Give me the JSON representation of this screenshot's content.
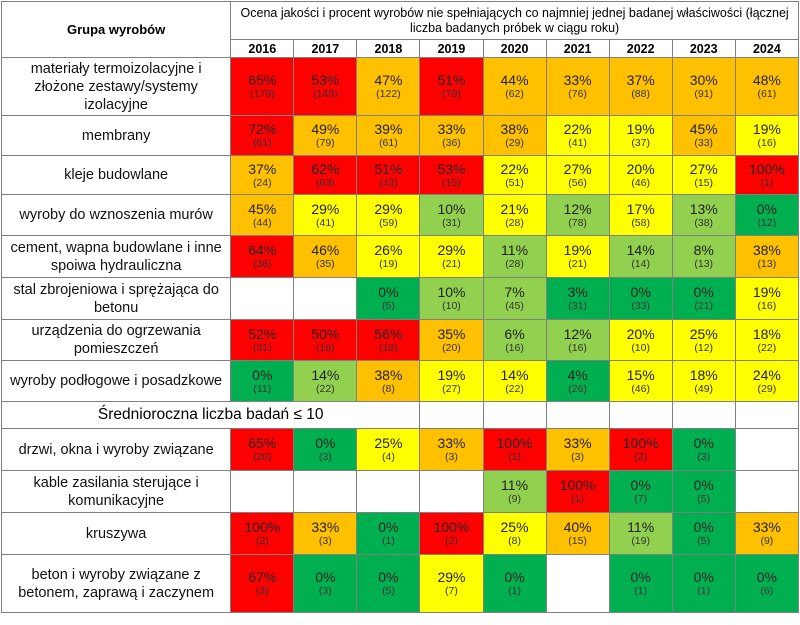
{
  "header": {
    "group_label": "Grupa wyrobów",
    "description": "Ocena jakości i procent wyrobów nie spełniających co najmniej jednej badanej właściwości (łącznej liczba badanych próbek w ciągu roku)",
    "years": [
      "2016",
      "2017",
      "2018",
      "2019",
      "2020",
      "2021",
      "2022",
      "2023",
      "2024"
    ]
  },
  "colors": {
    "red": "#ff0000",
    "orange": "#ffc000",
    "yellow": "#ffff00",
    "lgreen": "#92d050",
    "green": "#00b050",
    "empty": "#ffffff"
  },
  "section_label": "Średnioroczna liczba badań ≤ 10",
  "rows_main": [
    {
      "label": "materiały termoizolacyjne i złożone zestawy/systemy izolacyjne",
      "h": 58,
      "cells": [
        {
          "p": "65%",
          "n": "(179)",
          "c": "red"
        },
        {
          "p": "53%",
          "n": "(143)",
          "c": "red"
        },
        {
          "p": "47%",
          "n": "(122)",
          "c": "orange"
        },
        {
          "p": "51%",
          "n": "(79)",
          "c": "red"
        },
        {
          "p": "44%",
          "n": "(62)",
          "c": "orange"
        },
        {
          "p": "33%",
          "n": "(76)",
          "c": "orange"
        },
        {
          "p": "37%",
          "n": "(88)",
          "c": "orange"
        },
        {
          "p": "30%",
          "n": "(91)",
          "c": "orange"
        },
        {
          "p": "48%",
          "n": "(61)",
          "c": "orange"
        }
      ]
    },
    {
      "label": "membrany",
      "h": 40,
      "cells": [
        {
          "p": "72%",
          "n": "(61)",
          "c": "red"
        },
        {
          "p": "49%",
          "n": "(79)",
          "c": "orange"
        },
        {
          "p": "39%",
          "n": "(61)",
          "c": "orange"
        },
        {
          "p": "33%",
          "n": "(36)",
          "c": "orange"
        },
        {
          "p": "38%",
          "n": "(29)",
          "c": "orange"
        },
        {
          "p": "22%",
          "n": "(41)",
          "c": "yellow"
        },
        {
          "p": "19%",
          "n": "(37)",
          "c": "yellow"
        },
        {
          "p": "45%",
          "n": "(33)",
          "c": "orange"
        },
        {
          "p": "19%",
          "n": "(16)",
          "c": "yellow"
        }
      ]
    },
    {
      "label": "kleje budowlane",
      "h": 39,
      "cells": [
        {
          "p": "37%",
          "n": "(24)",
          "c": "orange"
        },
        {
          "p": "62%",
          "n": "(63)",
          "c": "red"
        },
        {
          "p": "51%",
          "n": "(43)",
          "c": "red"
        },
        {
          "p": "53%",
          "n": "(15)",
          "c": "red"
        },
        {
          "p": "22%",
          "n": "(51)",
          "c": "yellow"
        },
        {
          "p": "27%",
          "n": "(56)",
          "c": "yellow"
        },
        {
          "p": "20%",
          "n": "(46)",
          "c": "yellow"
        },
        {
          "p": "27%",
          "n": "(15)",
          "c": "yellow"
        },
        {
          "p": "100%",
          "n": "(1)",
          "c": "red"
        }
      ]
    },
    {
      "label": "wyroby do wznoszenia murów",
      "h": 41,
      "cells": [
        {
          "p": "45%",
          "n": "(44)",
          "c": "orange"
        },
        {
          "p": "29%",
          "n": "(41)",
          "c": "yellow"
        },
        {
          "p": "29%",
          "n": "(59)",
          "c": "yellow"
        },
        {
          "p": "10%",
          "n": "(31)",
          "c": "lgreen"
        },
        {
          "p": "21%",
          "n": "(28)",
          "c": "yellow"
        },
        {
          "p": "12%",
          "n": "(78)",
          "c": "lgreen"
        },
        {
          "p": "17%",
          "n": "(58)",
          "c": "yellow"
        },
        {
          "p": "13%",
          "n": "(38)",
          "c": "lgreen"
        },
        {
          "p": "0%",
          "n": "(12)",
          "c": "green"
        }
      ]
    },
    {
      "label": "cement, wapna budowlane i inne spoiwa hydrauliczna",
      "h": 42,
      "cells": [
        {
          "p": "64%",
          "n": "(36)",
          "c": "red"
        },
        {
          "p": "46%",
          "n": "(35)",
          "c": "orange"
        },
        {
          "p": "26%",
          "n": "(19)",
          "c": "yellow"
        },
        {
          "p": "29%",
          "n": "(21)",
          "c": "yellow"
        },
        {
          "p": "11%",
          "n": "(28)",
          "c": "lgreen"
        },
        {
          "p": "19%",
          "n": "(21)",
          "c": "yellow"
        },
        {
          "p": "14%",
          "n": "(14)",
          "c": "lgreen"
        },
        {
          "p": "8%",
          "n": "(13)",
          "c": "lgreen"
        },
        {
          "p": "38%",
          "n": "(13)",
          "c": "orange"
        }
      ]
    },
    {
      "label": "stal zbrojeniowa i sprężająca do betonu",
      "h": 42,
      "cells": [
        {
          "p": "",
          "n": "",
          "c": "empty"
        },
        {
          "p": "",
          "n": "",
          "c": "empty"
        },
        {
          "p": "0%",
          "n": "(5)",
          "c": "green"
        },
        {
          "p": "10%",
          "n": "(10)",
          "c": "lgreen"
        },
        {
          "p": "7%",
          "n": "(45)",
          "c": "lgreen"
        },
        {
          "p": "3%",
          "n": "(31)",
          "c": "green"
        },
        {
          "p": "0%",
          "n": "(33)",
          "c": "green"
        },
        {
          "p": "0%",
          "n": "(21)",
          "c": "green"
        },
        {
          "p": "19%",
          "n": "(16)",
          "c": "yellow"
        }
      ]
    },
    {
      "label": "urządzenia do ogrzewania pomieszczeń",
      "h": 41,
      "cells": [
        {
          "p": "52%",
          "n": "(31)",
          "c": "red"
        },
        {
          "p": "50%",
          "n": "(18)",
          "c": "red"
        },
        {
          "p": "56%",
          "n": "(18)",
          "c": "red"
        },
        {
          "p": "35%",
          "n": "(20)",
          "c": "orange"
        },
        {
          "p": "6%",
          "n": "(16)",
          "c": "lgreen"
        },
        {
          "p": "12%",
          "n": "(16)",
          "c": "lgreen"
        },
        {
          "p": "20%",
          "n": "(10)",
          "c": "yellow"
        },
        {
          "p": "25%",
          "n": "(12)",
          "c": "yellow"
        },
        {
          "p": "18%",
          "n": "(22)",
          "c": "yellow"
        }
      ]
    },
    {
      "label": "wyroby podłogowe i posadzkowe",
      "h": 41,
      "cells": [
        {
          "p": "0%",
          "n": "(11)",
          "c": "green"
        },
        {
          "p": "14%",
          "n": "(22)",
          "c": "lgreen"
        },
        {
          "p": "38%",
          "n": "(8)",
          "c": "orange"
        },
        {
          "p": "19%",
          "n": "(27)",
          "c": "yellow"
        },
        {
          "p": "14%",
          "n": "(22)",
          "c": "yellow"
        },
        {
          "p": "4%",
          "n": "(26)",
          "c": "green"
        },
        {
          "p": "15%",
          "n": "(46)",
          "c": "yellow"
        },
        {
          "p": "18%",
          "n": "(49)",
          "c": "yellow"
        },
        {
          "p": "24%",
          "n": "(29)",
          "c": "yellow"
        }
      ]
    }
  ],
  "rows_small": [
    {
      "label": "drzwi, okna i wyroby związane",
      "h": 42,
      "cells": [
        {
          "p": "65%",
          "n": "(20)",
          "c": "red"
        },
        {
          "p": "0%",
          "n": "(3)",
          "c": "green"
        },
        {
          "p": "25%",
          "n": "(4)",
          "c": "yellow"
        },
        {
          "p": "33%",
          "n": "(3)",
          "c": "orange"
        },
        {
          "p": "100%",
          "n": "(1)",
          "c": "red"
        },
        {
          "p": "33%",
          "n": "(3)",
          "c": "orange"
        },
        {
          "p": "100%",
          "n": "(2)",
          "c": "red"
        },
        {
          "p": "0%",
          "n": "(3)",
          "c": "green"
        },
        {
          "p": "",
          "n": "",
          "c": "empty"
        }
      ]
    },
    {
      "label": "kable zasilania sterujące i komunikacyjne",
      "h": 42,
      "cells": [
        {
          "p": "",
          "n": "",
          "c": "empty"
        },
        {
          "p": "",
          "n": "",
          "c": "empty"
        },
        {
          "p": "",
          "n": "",
          "c": "empty"
        },
        {
          "p": "",
          "n": "",
          "c": "empty"
        },
        {
          "p": "11%",
          "n": "(9)",
          "c": "lgreen"
        },
        {
          "p": "100%",
          "n": "(1)",
          "c": "red"
        },
        {
          "p": "0%",
          "n": "(7)",
          "c": "green"
        },
        {
          "p": "0%",
          "n": "(5)",
          "c": "green"
        },
        {
          "p": "",
          "n": "",
          "c": "empty"
        }
      ]
    },
    {
      "label": "kruszywa",
      "h": 42,
      "cells": [
        {
          "p": "100%",
          "n": "(2)",
          "c": "red"
        },
        {
          "p": "33%",
          "n": "(3)",
          "c": "orange"
        },
        {
          "p": "0%",
          "n": "(1)",
          "c": "green"
        },
        {
          "p": "100%",
          "n": "(2)",
          "c": "red"
        },
        {
          "p": "25%",
          "n": "(8)",
          "c": "yellow"
        },
        {
          "p": "40%",
          "n": "(15)",
          "c": "orange"
        },
        {
          "p": "11%",
          "n": "(19)",
          "c": "lgreen"
        },
        {
          "p": "0%",
          "n": "(5)",
          "c": "green"
        },
        {
          "p": "33%",
          "n": "(9)",
          "c": "orange"
        }
      ]
    },
    {
      "label": "beton i wyroby związane z betonem, zaprawą i zaczynem",
      "h": 58,
      "cells": [
        {
          "p": "67%",
          "n": "(3)",
          "c": "red"
        },
        {
          "p": "0%",
          "n": "(3)",
          "c": "green"
        },
        {
          "p": "0%",
          "n": "(5)",
          "c": "green"
        },
        {
          "p": "29%",
          "n": "(7)",
          "c": "yellow"
        },
        {
          "p": "0%",
          "n": "(1)",
          "c": "green"
        },
        {
          "p": "",
          "n": "",
          "c": "empty"
        },
        {
          "p": "0%",
          "n": "(1)",
          "c": "green"
        },
        {
          "p": "0%",
          "n": "(1)",
          "c": "green"
        },
        {
          "p": "0%",
          "n": "(6)",
          "c": "green"
        }
      ]
    }
  ]
}
